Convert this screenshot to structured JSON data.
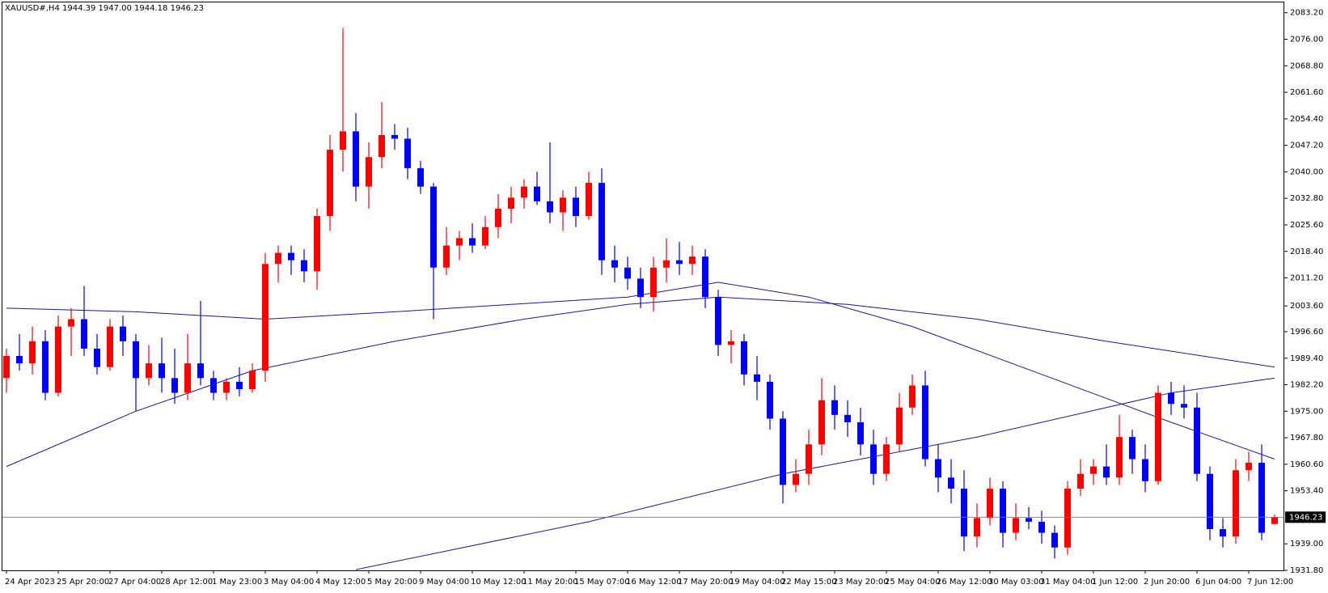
{
  "chart_data": {
    "type": "candlestick",
    "title": "XAUUSD#,H4  1944.39 1947.00 1944.18 1946.23",
    "up_color": "#ff0000",
    "down_color": "#0000ff",
    "line_color": "#1a1a8c",
    "categories": [
      "24 Apr 2023",
      null,
      null,
      null,
      "25 Apr 20:00",
      null,
      null,
      null,
      "27 Apr 04:00",
      null,
      null,
      null,
      "28 Apr 12:00",
      null,
      null,
      null,
      "1 May 23:00",
      null,
      null,
      null,
      "3 May 04:00",
      null,
      null,
      null,
      "4 May 12:00",
      null,
      null,
      null,
      "5 May 20:00",
      null,
      null,
      null,
      "9 May 04:00",
      null,
      null,
      null,
      "10 May 12:00",
      null,
      null,
      null,
      "11 May 20:00",
      null,
      null,
      null,
      "15 May 07:00",
      null,
      null,
      null,
      "16 May 12:00",
      null,
      null,
      null,
      "17 May 20:00",
      null,
      null,
      null,
      "19 May 04:00",
      null,
      null,
      null,
      "22 May 15:00",
      null,
      null,
      null,
      "23 May 20:00",
      null,
      null,
      null,
      "25 May 04:00",
      null,
      null,
      null,
      "26 May 12:00",
      null,
      null,
      null,
      "30 May 03:00",
      null,
      null,
      null,
      "31 May 04:00",
      null,
      null,
      null,
      "1 Jun 12:00",
      null,
      null,
      null,
      "2 Jun 20:00",
      null,
      null,
      null,
      "6 Jun 04:00",
      null,
      null,
      null,
      "7 Jun 12:00",
      null,
      null
    ],
    "candles": [
      [
        1984,
        1992,
        1980,
        1990
      ],
      [
        1990,
        1996,
        1986,
        1988
      ],
      [
        1988,
        1998,
        1985,
        1994
      ],
      [
        1994,
        1997,
        1978,
        1980
      ],
      [
        1980,
        2001,
        1979,
        1998
      ],
      [
        1998,
        2003,
        1990,
        2000
      ],
      [
        2000,
        2009,
        1990,
        1992
      ],
      [
        1992,
        1996,
        1985,
        1987
      ],
      [
        1987,
        2000,
        1986,
        1998
      ],
      [
        1998,
        2001,
        1990,
        1994
      ],
      [
        1994,
        1996,
        1975,
        1984
      ],
      [
        1984,
        1993,
        1982,
        1988
      ],
      [
        1988,
        1995,
        1980,
        1984
      ],
      [
        1984,
        1992,
        1977,
        1980
      ],
      [
        1980,
        1996,
        1978,
        1988
      ],
      [
        1988,
        2005,
        1982,
        1984
      ],
      [
        1984,
        1986,
        1978,
        1980
      ],
      [
        1980,
        1984,
        1978,
        1983
      ],
      [
        1983,
        1987,
        1979,
        1981
      ],
      [
        1981,
        1988,
        1980,
        1986
      ],
      [
        1986,
        2018,
        1983,
        2015
      ],
      [
        2015,
        2020,
        2010,
        2018
      ],
      [
        2018,
        2020,
        2012,
        2016
      ],
      [
        2016,
        2019,
        2010,
        2013
      ],
      [
        2013,
        2030,
        2008,
        2028
      ],
      [
        2028,
        2050,
        2024,
        2046
      ],
      [
        2046,
        2079,
        2040,
        2051
      ],
      [
        2051,
        2056,
        2032,
        2036
      ],
      [
        2036,
        2048,
        2030,
        2044
      ],
      [
        2044,
        2059,
        2041,
        2050
      ],
      [
        2050,
        2053,
        2046,
        2049
      ],
      [
        2049,
        2052,
        2038,
        2041
      ],
      [
        2041,
        2043,
        2034,
        2036
      ],
      [
        2036,
        2037,
        2000,
        2014
      ],
      [
        2014,
        2025,
        2012,
        2020
      ],
      [
        2020,
        2024,
        2016,
        2022
      ],
      [
        2022,
        2026,
        2018,
        2020
      ],
      [
        2020,
        2028,
        2019,
        2025
      ],
      [
        2025,
        2034,
        2022,
        2030
      ],
      [
        2030,
        2036,
        2026,
        2033
      ],
      [
        2033,
        2038,
        2030,
        2036
      ],
      [
        2036,
        2040,
        2031,
        2032
      ],
      [
        2032,
        2048,
        2026,
        2029
      ],
      [
        2029,
        2035,
        2024,
        2033
      ],
      [
        2033,
        2036,
        2025,
        2028
      ],
      [
        2028,
        2040,
        2027,
        2037
      ],
      [
        2037,
        2041,
        2012,
        2016
      ],
      [
        2016,
        2020,
        2010,
        2014
      ],
      [
        2014,
        2017,
        2008,
        2011
      ],
      [
        2011,
        2014,
        2003,
        2006
      ],
      [
        2006,
        2017,
        2002,
        2014
      ],
      [
        2014,
        2022,
        2010,
        2016
      ],
      [
        2016,
        2021,
        2012,
        2015
      ],
      [
        2015,
        2020,
        2012,
        2017
      ],
      [
        2017,
        2019,
        2003,
        2006
      ],
      [
        2006,
        2008,
        1990,
        1993
      ],
      [
        1993,
        1997,
        1988,
        1994
      ],
      [
        1994,
        1996,
        1982,
        1985
      ],
      [
        1985,
        1990,
        1978,
        1983
      ],
      [
        1983,
        1985,
        1970,
        1973
      ],
      [
        1973,
        1975,
        1950,
        1955
      ],
      [
        1955,
        1962,
        1953,
        1958
      ],
      [
        1958,
        1970,
        1955,
        1966
      ],
      [
        1966,
        1984,
        1963,
        1978
      ],
      [
        1978,
        1982,
        1970,
        1974
      ],
      [
        1974,
        1978,
        1968,
        1972
      ],
      [
        1972,
        1976,
        1963,
        1966
      ],
      [
        1966,
        1970,
        1955,
        1958
      ],
      [
        1958,
        1968,
        1956,
        1966
      ],
      [
        1966,
        1980,
        1964,
        1976
      ],
      [
        1976,
        1985,
        1974,
        1982
      ],
      [
        1982,
        1986,
        1960,
        1962
      ],
      [
        1962,
        1966,
        1953,
        1957
      ],
      [
        1957,
        1962,
        1950,
        1954
      ],
      [
        1954,
        1959,
        1937,
        1941
      ],
      [
        1941,
        1950,
        1938,
        1946
      ],
      [
        1946,
        1957,
        1944,
        1954
      ],
      [
        1954,
        1956,
        1938,
        1942
      ],
      [
        1942,
        1950,
        1940,
        1946
      ],
      [
        1946,
        1949,
        1943,
        1945
      ],
      [
        1945,
        1948,
        1939,
        1942
      ],
      [
        1942,
        1944,
        1935,
        1938
      ],
      [
        1938,
        1956,
        1936,
        1954
      ],
      [
        1954,
        1962,
        1952,
        1958
      ],
      [
        1958,
        1962,
        1955,
        1960
      ],
      [
        1960,
        1966,
        1955,
        1957
      ],
      [
        1957,
        1974,
        1955,
        1968
      ],
      [
        1968,
        1970,
        1958,
        1962
      ],
      [
        1962,
        1966,
        1953,
        1956
      ],
      [
        1956,
        1982,
        1955,
        1980
      ],
      [
        1980,
        1983,
        1974,
        1977
      ],
      [
        1977,
        1982,
        1973,
        1976
      ],
      [
        1976,
        1980,
        1956,
        1958
      ],
      [
        1958,
        1960,
        1940,
        1943
      ],
      [
        1943,
        1946,
        1938,
        1941
      ],
      [
        1941,
        1962,
        1939,
        1959
      ],
      [
        1959,
        1964,
        1956,
        1961
      ],
      [
        1961,
        1966,
        1940,
        1942
      ],
      [
        1944.39,
        1947.0,
        1944.18,
        1946.23
      ]
    ],
    "lines": [
      {
        "x": [
          27,
          45,
          60,
          75,
          90,
          98
        ],
        "values": [
          1932,
          1945,
          1958,
          1968,
          1980,
          1984
        ]
      },
      {
        "x": [
          0,
          10,
          19,
          30,
          40,
          48,
          55,
          65,
          75,
          85,
          98
        ],
        "values": [
          1960,
          1975,
          1986,
          1994,
          2000,
          2004,
          2006,
          2004,
          2000,
          1994,
          1987
        ]
      },
      {
        "x": [
          0,
          10,
          20,
          30,
          48,
          55,
          62,
          70,
          80,
          90,
          98
        ],
        "values": [
          2003,
          2002,
          2000,
          2002,
          2006,
          2010,
          2006,
          1998,
          1985,
          1972,
          1962
        ]
      }
    ],
    "ylim": [
      1931.8,
      2086.0
    ],
    "yticks": [
      {
        "value": 2083.2,
        "label": "2083.20"
      },
      {
        "value": 2076.0,
        "label": "2076.00"
      },
      {
        "value": 2068.8,
        "label": "2068.80"
      },
      {
        "value": 2061.6,
        "label": "2061.60"
      },
      {
        "value": 2054.4,
        "label": "2054.40"
      },
      {
        "value": 2047.2,
        "label": "2047.20"
      },
      {
        "value": 2040.0,
        "label": "2040.00"
      },
      {
        "value": 2032.8,
        "label": "2032.80"
      },
      {
        "value": 2025.6,
        "label": "2025.60"
      },
      {
        "value": 2018.4,
        "label": "2018.40"
      },
      {
        "value": 2011.2,
        "label": "2011.20"
      },
      {
        "value": 2003.6,
        "label": "2003.60"
      },
      {
        "value": 1996.6,
        "label": "1996.60"
      },
      {
        "value": 1989.4,
        "label": "1989.40"
      },
      {
        "value": 1982.2,
        "label": "1982.20"
      },
      {
        "value": 1975.0,
        "label": "1975.00"
      },
      {
        "value": 1967.8,
        "label": "1967.80"
      },
      {
        "value": 1960.6,
        "label": "1960.60"
      },
      {
        "value": 1953.4,
        "label": "1953.40"
      },
      {
        "value": 1939.0,
        "label": "1939.00"
      },
      {
        "value": 1931.8,
        "label": "1931.80"
      }
    ],
    "last_price": {
      "value": 1946.23,
      "label": "1946.23"
    }
  }
}
